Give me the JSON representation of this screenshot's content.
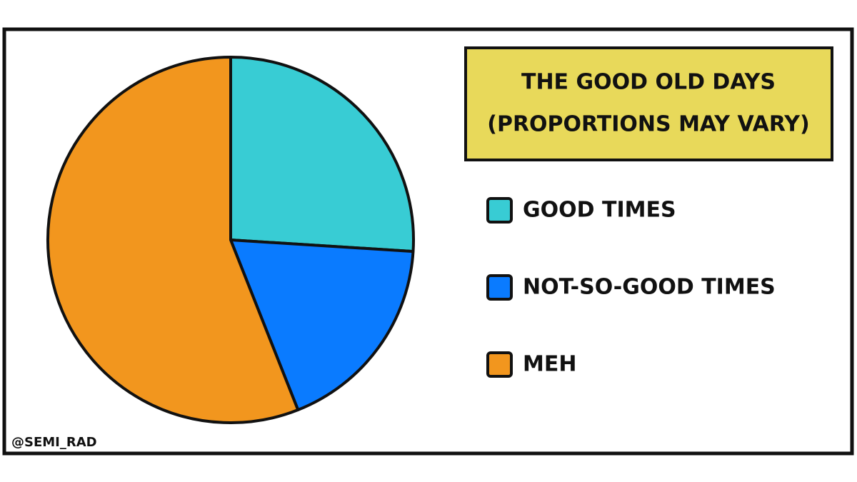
{
  "chart_data": {
    "type": "pie",
    "title": "THE GOOD OLD DAYS",
    "subtitle": "(PROPORTIONS MAY VARY)",
    "categories": [
      "GOOD TIMES",
      "NOT-SO-GOOD TIMES",
      "MEH"
    ],
    "values": [
      26,
      18,
      56
    ],
    "colors": [
      "#38ccd4",
      "#0a7bff",
      "#f2961e"
    ],
    "credit": "@SEMI_RAD"
  }
}
